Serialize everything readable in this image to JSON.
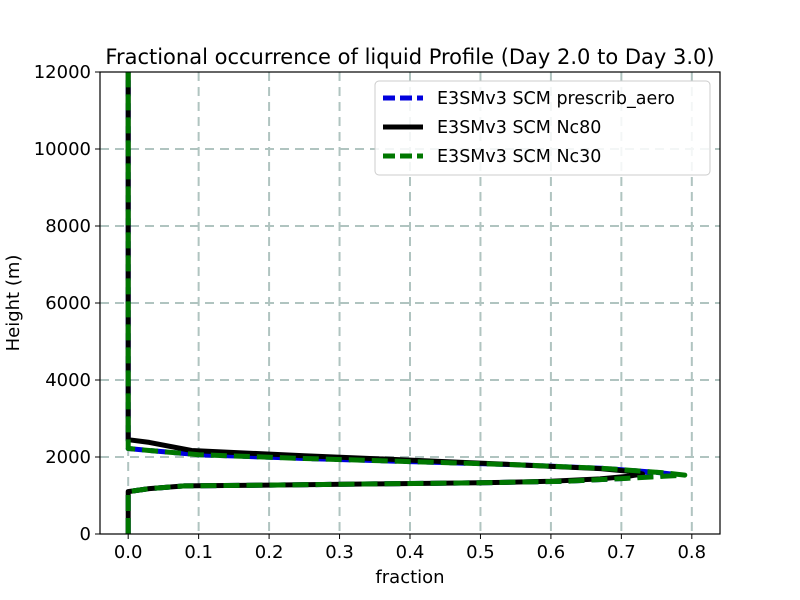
{
  "chart_data": {
    "type": "line",
    "title": "Fractional occurrence of liquid Profile (Day 2.0 to Day 3.0)",
    "xlabel": "fraction",
    "ylabel": "Height (m)",
    "xlim": [
      -0.04,
      0.84
    ],
    "ylim": [
      0,
      12000
    ],
    "xticks": [
      0.0,
      0.1,
      0.2,
      0.3,
      0.4,
      0.5,
      0.6,
      0.7,
      0.8
    ],
    "xtick_labels": [
      "0.0",
      "0.1",
      "0.2",
      "0.3",
      "0.4",
      "0.5",
      "0.6",
      "0.7",
      "0.8"
    ],
    "yticks": [
      0,
      2000,
      4000,
      6000,
      8000,
      10000,
      12000
    ],
    "ytick_labels": [
      "0",
      "2000",
      "4000",
      "6000",
      "8000",
      "10000",
      "12000"
    ],
    "grid": true,
    "legend_position": "top-right",
    "series": [
      {
        "name": "E3SMv3 SCM prescrib_aero",
        "color": "#0000dd",
        "style": "dashed",
        "x": [
          0.0,
          0.0,
          0.0,
          0.03,
          0.08,
          0.2,
          0.35,
          0.5,
          0.62,
          0.7,
          0.75,
          0.78,
          0.75,
          0.68,
          0.55,
          0.4,
          0.25,
          0.1,
          0.03,
          0.0,
          0.0,
          0.0,
          0.0
        ],
        "y": [
          0,
          1000,
          1100,
          1180,
          1250,
          1270,
          1300,
          1330,
          1370,
          1440,
          1510,
          1540,
          1600,
          1700,
          1800,
          1880,
          1960,
          2060,
          2170,
          2220,
          2300,
          6000,
          12000
        ]
      },
      {
        "name": "E3SMv3 SCM Nc80",
        "color": "#000000",
        "style": "solid",
        "x": [
          0.0,
          0.0,
          0.0,
          0.03,
          0.08,
          0.2,
          0.35,
          0.5,
          0.6,
          0.67,
          0.71,
          0.73,
          0.71,
          0.67,
          0.55,
          0.4,
          0.25,
          0.09,
          0.03,
          0.0,
          0.0,
          0.0
        ],
        "y": [
          0,
          1000,
          1100,
          1180,
          1250,
          1270,
          1300,
          1330,
          1370,
          1430,
          1500,
          1560,
          1630,
          1700,
          1800,
          1920,
          2030,
          2170,
          2380,
          2450,
          6000,
          12000
        ]
      },
      {
        "name": "E3SMv3 SCM Nc30",
        "color": "#007700",
        "style": "dashed",
        "x": [
          0.0,
          0.0,
          0.0,
          0.03,
          0.08,
          0.2,
          0.35,
          0.5,
          0.62,
          0.7,
          0.76,
          0.79,
          0.76,
          0.68,
          0.55,
          0.4,
          0.25,
          0.1,
          0.03,
          0.0,
          0.0,
          0.0,
          0.0
        ],
        "y": [
          0,
          1000,
          1100,
          1180,
          1250,
          1270,
          1300,
          1330,
          1370,
          1440,
          1500,
          1530,
          1590,
          1700,
          1800,
          1880,
          1960,
          2060,
          2170,
          2220,
          2300,
          6000,
          12000
        ]
      }
    ]
  }
}
